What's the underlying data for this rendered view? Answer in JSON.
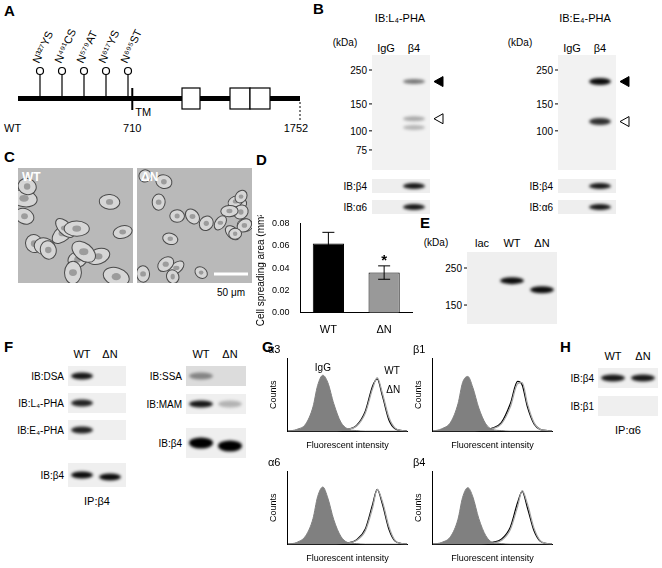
{
  "chart_data": [
    {
      "type": "bar",
      "categories": [
        "WT",
        "ΔN"
      ],
      "values": [
        0.062,
        0.036
      ],
      "errors": [
        0.01,
        0.006
      ],
      "colors": [
        "#000000",
        "#999999"
      ],
      "y_label": "Cell spreading area (mm²)",
      "ylim": [
        0,
        0.08
      ],
      "yticks": [
        {
          "value": 0,
          "label": "0.00"
        },
        0.02,
        0.04,
        0.06,
        0.08
      ],
      "grid": false,
      "annotation": {
        "text": "*",
        "category": "ΔN"
      }
    },
    {
      "type": "line",
      "title": "α3",
      "x_label": "Fluorescent intensity",
      "y_label": "Counts",
      "x": [
        1,
        2,
        4,
        7,
        10,
        15,
        22,
        35,
        60,
        100,
        200,
        400,
        700,
        1000,
        1500,
        2500,
        4000,
        7000,
        10000
      ],
      "series": [
        {
          "name": "IgG",
          "type": "area",
          "color": "#808080",
          "values": [
            0,
            3,
            12,
            40,
            75,
            92,
            80,
            45,
            15,
            4,
            1,
            0,
            0,
            0,
            0,
            0,
            0,
            0,
            0
          ]
        },
        {
          "name": "WT",
          "color": "#a6a6a6",
          "values": [
            0,
            0,
            0,
            0,
            0,
            0,
            0,
            0,
            1,
            3,
            8,
            30,
            70,
            88,
            62,
            22,
            5,
            1,
            0
          ]
        },
        {
          "name": "ΔN",
          "color": "#000000",
          "values": [
            0,
            0,
            0,
            0,
            0,
            0,
            0,
            0,
            1,
            3,
            9,
            33,
            74,
            86,
            58,
            18,
            4,
            1,
            0
          ]
        }
      ],
      "log": "x",
      "xlim": [
        1,
        10000
      ],
      "ylim": [
        0,
        120
      ],
      "grid": false,
      "tick_labels": false
    },
    {
      "type": "line",
      "title": "β1",
      "x_label": "Fluorescent intensity",
      "y_label": "Counts",
      "x": [
        1,
        2,
        4,
        7,
        10,
        15,
        22,
        35,
        60,
        100,
        200,
        400,
        700,
        1000,
        1500,
        2500,
        4000,
        7000,
        10000
      ],
      "series": [
        {
          "type": "area",
          "color": "#808080",
          "values": [
            0,
            4,
            15,
            45,
            80,
            90,
            72,
            38,
            12,
            3,
            1,
            0,
            0,
            0,
            0,
            0,
            0,
            0,
            0
          ]
        },
        {
          "color": "#a6a6a6",
          "values": [
            0,
            0,
            0,
            0,
            0,
            0,
            0,
            1,
            2,
            4,
            12,
            40,
            78,
            80,
            45,
            14,
            3,
            1,
            0
          ]
        },
        {
          "color": "#000000",
          "values": [
            0,
            0,
            0,
            0,
            0,
            0,
            0,
            1,
            2,
            5,
            14,
            45,
            82,
            76,
            40,
            12,
            3,
            1,
            0
          ]
        }
      ],
      "log": "x",
      "xlim": [
        1,
        10000
      ],
      "ylim": [
        0,
        120
      ],
      "grid": false,
      "tick_labels": false
    },
    {
      "type": "line",
      "title": "α6",
      "x_label": "Fluorescent intensity",
      "y_label": "Counts",
      "x": [
        1,
        2,
        4,
        7,
        10,
        15,
        22,
        35,
        60,
        100,
        200,
        400,
        700,
        1000,
        1500,
        2500,
        4000,
        7000,
        10000
      ],
      "series": [
        {
          "type": "area",
          "color": "#808080",
          "values": [
            0,
            3,
            14,
            42,
            78,
            94,
            76,
            40,
            13,
            3,
            1,
            0,
            0,
            0,
            0,
            0,
            0,
            0,
            0
          ]
        },
        {
          "color": "#a6a6a6",
          "values": [
            0,
            0,
            0,
            0,
            0,
            0,
            0,
            0,
            1,
            2,
            6,
            22,
            60,
            90,
            70,
            28,
            6,
            1,
            0
          ]
        },
        {
          "color": "#000000",
          "values": [
            0,
            0,
            0,
            0,
            0,
            0,
            0,
            0,
            1,
            2,
            7,
            25,
            65,
            90,
            66,
            24,
            5,
            1,
            0
          ]
        }
      ],
      "log": "x",
      "xlim": [
        1,
        10000
      ],
      "ylim": [
        0,
        120
      ],
      "grid": false,
      "tick_labels": false
    },
    {
      "type": "line",
      "title": "β4",
      "x_label": "Fluorescent intensity",
      "y_label": "Counts",
      "x": [
        1,
        2,
        4,
        7,
        10,
        15,
        22,
        35,
        60,
        100,
        200,
        400,
        700,
        1000,
        1500,
        2500,
        4000,
        7000,
        10000
      ],
      "series": [
        {
          "type": "area",
          "color": "#808080",
          "values": [
            0,
            3,
            13,
            41,
            77,
            93,
            78,
            42,
            14,
            3,
            1,
            0,
            0,
            0,
            0,
            0,
            0,
            0,
            0
          ]
        },
        {
          "color": "#a6a6a6",
          "values": [
            0,
            0,
            0,
            0,
            0,
            0,
            0,
            0,
            1,
            2,
            6,
            24,
            62,
            88,
            66,
            26,
            6,
            1,
            0
          ]
        },
        {
          "color": "#000000",
          "values": [
            0,
            0,
            0,
            0,
            0,
            0,
            0,
            0,
            1,
            3,
            8,
            28,
            68,
            87,
            60,
            22,
            5,
            1,
            0
          ]
        }
      ],
      "log": "x",
      "xlim": [
        1,
        10000
      ],
      "ylim": [
        0,
        120
      ],
      "grid": false,
      "tick_labels": false
    }
  ],
  "panels": {
    "A": {
      "label": "A",
      "sites": [
        "N³²⁷YS",
        "N⁴⁹¹CS",
        "N⁵⁷⁹AT",
        "N⁶¹⁷YS",
        "N⁶⁹⁵ST"
      ],
      "domain": "TM",
      "construct": "WT",
      "residues": [
        710,
        1752
      ]
    },
    "B": {
      "label": "B",
      "unit": "(kDa)",
      "blots": [
        {
          "title": "IB:L₄-PHA",
          "markers": [
            250,
            150,
            100,
            75
          ],
          "lanes": [
            "IgG",
            "β4"
          ],
          "strips": [
            "IB:β4",
            "IB:α6"
          ]
        },
        {
          "title": "IB:E₄-PHA",
          "markers": [
            250,
            150,
            100
          ],
          "lanes": [
            "IgG",
            "β4"
          ],
          "strips": [
            "IB:β4",
            "IB:α6"
          ]
        }
      ]
    },
    "C": {
      "label": "C",
      "images": [
        "WT",
        "ΔN"
      ],
      "scale_bar": "50 μm"
    },
    "D": {
      "label": "D"
    },
    "E": {
      "label": "E",
      "unit": "(kDa)",
      "markers": [
        250,
        150
      ],
      "lanes": [
        "lac",
        "WT",
        "ΔN"
      ]
    },
    "F": {
      "label": "F",
      "lanes": [
        "WT",
        "ΔN"
      ],
      "left_rows": [
        "IB:DSA",
        "IB:L₄-PHA",
        "IB:E₄-PHA",
        "IB:β4"
      ],
      "left_ip": "IP:β4",
      "right_rows": [
        "IB:SSA",
        "IB:MAM",
        "IB:β4"
      ]
    },
    "G": {
      "label": "G"
    },
    "H": {
      "label": "H",
      "lanes": [
        "WT",
        "ΔN"
      ],
      "rows": [
        "IB:β4",
        "IB:β1"
      ],
      "ip": "IP:α6"
    }
  }
}
